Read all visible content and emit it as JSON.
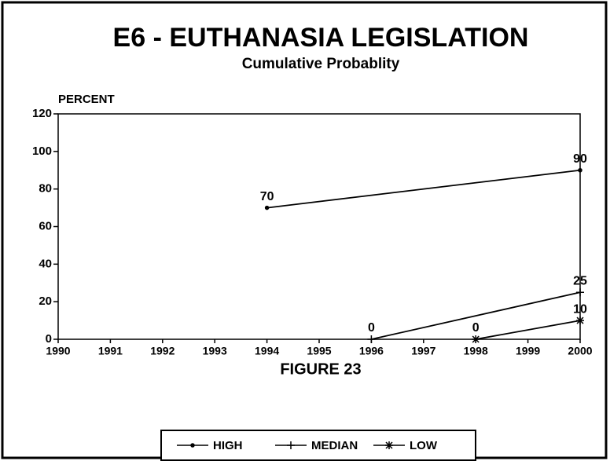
{
  "chart_data": {
    "type": "line",
    "title": "E6 - EUTHANASIA LEGISLATION",
    "subtitle": "Cumulative Probablity",
    "y_label": "PERCENT",
    "x_label": "FIGURE 23",
    "xlim": [
      1990,
      2000
    ],
    "xticks": [
      1990,
      1991,
      1992,
      1993,
      1994,
      1995,
      1996,
      1997,
      1998,
      1999,
      2000
    ],
    "ylim": [
      0,
      120
    ],
    "yticks": [
      0,
      20,
      40,
      60,
      80,
      100,
      120
    ],
    "series": [
      {
        "name": "HIGH",
        "color": "#000000",
        "marker": "dot",
        "x": [
          1994,
          2000
        ],
        "values": [
          70,
          90
        ]
      },
      {
        "name": "MEDIAN",
        "color": "#000000",
        "marker": "plus",
        "x": [
          1996,
          2000
        ],
        "values": [
          0,
          25
        ]
      },
      {
        "name": "LOW",
        "color": "#000000",
        "marker": "star",
        "x": [
          1998,
          2000
        ],
        "values": [
          0,
          10
        ]
      }
    ]
  }
}
